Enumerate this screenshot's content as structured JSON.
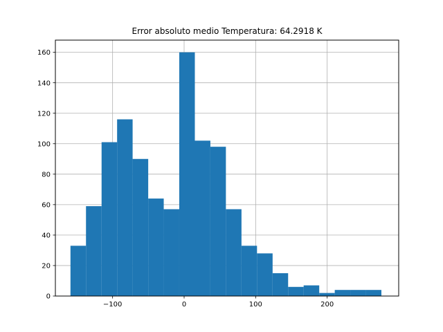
{
  "chart_data": {
    "type": "bar",
    "title": "Error absoluto medio Temperatura: 64.2918 K",
    "xlabel": "",
    "ylabel": "",
    "grid": true,
    "color": "#1f77b4",
    "xlim": [
      -180,
      300
    ],
    "ylim": [
      0,
      168
    ],
    "x_ticks": [
      -100,
      0,
      100,
      200
    ],
    "x_tick_labels": [
      "−100",
      "0",
      "100",
      "200"
    ],
    "y_ticks": [
      0,
      20,
      40,
      60,
      80,
      100,
      120,
      140,
      160
    ],
    "y_tick_labels": [
      "0",
      "20",
      "40",
      "60",
      "80",
      "100",
      "120",
      "140",
      "160"
    ],
    "bins": [
      {
        "x0": -158.9,
        "x1": -137.2,
        "value": 33
      },
      {
        "x0": -137.2,
        "x1": -115.4,
        "value": 59
      },
      {
        "x0": -115.4,
        "x1": -93.7,
        "value": 101
      },
      {
        "x0": -93.7,
        "x1": -72.0,
        "value": 116
      },
      {
        "x0": -72.0,
        "x1": -50.2,
        "value": 90
      },
      {
        "x0": -50.2,
        "x1": -28.5,
        "value": 64
      },
      {
        "x0": -28.5,
        "x1": -6.8,
        "value": 57
      },
      {
        "x0": -6.8,
        "x1": 15.0,
        "value": 160
      },
      {
        "x0": 15.0,
        "x1": 36.7,
        "value": 102
      },
      {
        "x0": 36.7,
        "x1": 58.4,
        "value": 98
      },
      {
        "x0": 58.4,
        "x1": 80.2,
        "value": 57
      },
      {
        "x0": 80.2,
        "x1": 101.9,
        "value": 33
      },
      {
        "x0": 101.9,
        "x1": 123.7,
        "value": 28
      },
      {
        "x0": 123.7,
        "x1": 145.4,
        "value": 15
      },
      {
        "x0": 145.4,
        "x1": 167.1,
        "value": 6
      },
      {
        "x0": 167.1,
        "x1": 188.9,
        "value": 7
      },
      {
        "x0": 188.9,
        "x1": 210.6,
        "value": 2
      },
      {
        "x0": 210.6,
        "x1": 232.3,
        "value": 4
      },
      {
        "x0": 232.3,
        "x1": 254.1,
        "value": 4
      },
      {
        "x0": 254.1,
        "x1": 275.8,
        "value": 4
      }
    ]
  }
}
